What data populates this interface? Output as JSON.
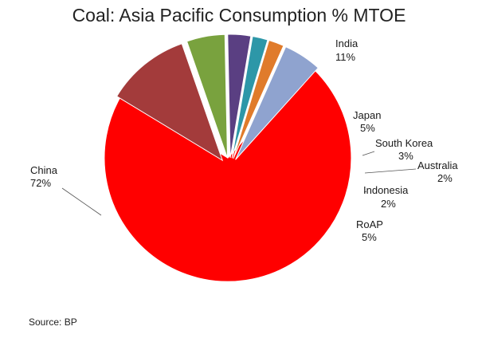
{
  "chart_data": {
    "type": "pie",
    "title": "Coal: Asia Pacific Consumption % MTOE",
    "slices": [
      {
        "name": "China",
        "value": 72,
        "label": "72%",
        "color": "#ff0000"
      },
      {
        "name": "India",
        "value": 11,
        "label": "11%",
        "color": "#a33b3b"
      },
      {
        "name": "Japan",
        "value": 5,
        "label": "5%",
        "color": "#79a23e"
      },
      {
        "name": "South Korea",
        "value": 3,
        "label": "3%",
        "color": "#5a3f82"
      },
      {
        "name": "Australia",
        "value": 2,
        "label": "2%",
        "color": "#2d97a8"
      },
      {
        "name": "Indonesia",
        "value": 2,
        "label": "2%",
        "color": "#e07b2b"
      },
      {
        "name": "RoAP",
        "value": 5,
        "label": "5%",
        "color": "#8fa3cf"
      }
    ],
    "legend": "none",
    "source": "Source: BP"
  }
}
